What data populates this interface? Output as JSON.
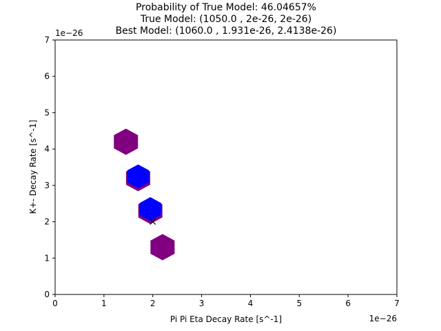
{
  "chart_data": {
    "type": "scatter",
    "title_lines": [
      "Probability of True Model: 46.04657%",
      "True Model: (1050.0 , 2e-26, 2e-26)",
      "Best Model: (1060.0 , 1.931e-26, 2.4138e-26)"
    ],
    "xlabel": "Pi Pi Eta Decay Rate [s^-1]",
    "ylabel": "K+- Decay Rate [s^-1]",
    "x_offset_label": "1e−26",
    "y_offset_label": "1e−26",
    "xlim": [
      0,
      7
    ],
    "ylim": [
      0,
      7
    ],
    "xticks": [
      0,
      1,
      2,
      3,
      4,
      5,
      6,
      7
    ],
    "yticks": [
      0,
      1,
      2,
      3,
      4,
      5,
      6,
      7
    ],
    "grid": false,
    "hexbins": [
      {
        "x": 1.45,
        "y": 4.2,
        "color": "#800080"
      },
      {
        "x": 1.7,
        "y": 3.2,
        "color": "#800080"
      },
      {
        "x": 1.95,
        "y": 2.3,
        "color": "#800080"
      },
      {
        "x": 2.2,
        "y": 1.3,
        "color": "#800080"
      },
      {
        "x": 1.7,
        "y": 3.25,
        "color": "#0000ff"
      },
      {
        "x": 1.95,
        "y": 2.35,
        "color": "#0000ff"
      }
    ],
    "true_model_marker": {
      "x": 2.0,
      "y": 2.0,
      "symbol": "x",
      "color": "#000000"
    }
  }
}
